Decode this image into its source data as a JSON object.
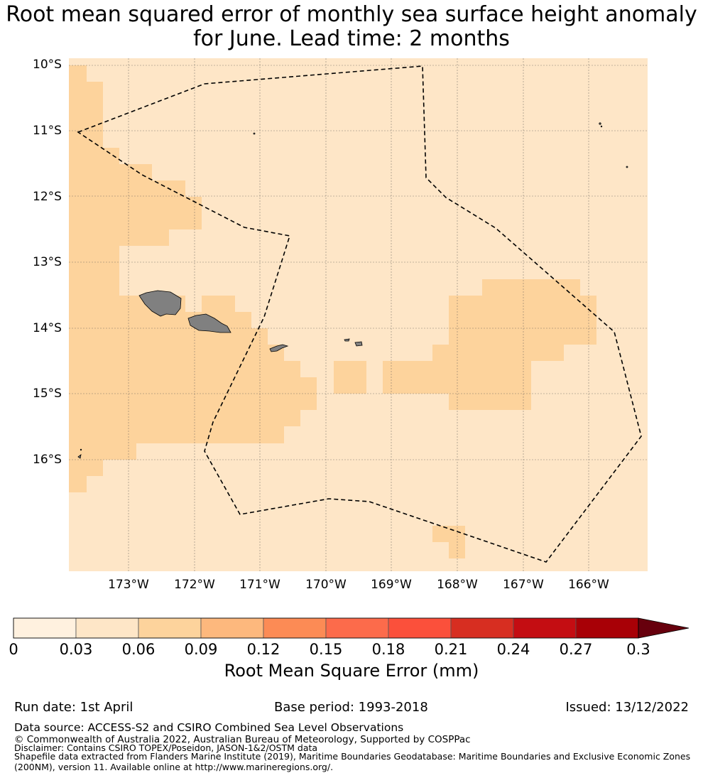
{
  "title": {
    "line1": "Root mean squared error of monthly sea surface height anomaly",
    "line2": "for June. Lead time: 2 months"
  },
  "map": {
    "lat_labels": [
      "10°S",
      "11°S",
      "12°S",
      "13°S",
      "14°S",
      "15°S",
      "16°S"
    ],
    "lon_labels": [
      "173°W",
      "172°W",
      "171°W",
      "170°W",
      "169°W",
      "168°W",
      "167°W",
      "166°W"
    ],
    "extent": {
      "lon_min": -173.9,
      "lon_max": -165.1,
      "lat_min": -17.6,
      "lat_max": -9.9
    },
    "colors": {
      "background": "#fee6c7",
      "cell_high": "#fdd39c",
      "land": "#808080",
      "boundary": "#000000"
    }
  },
  "colorbar": {
    "ticks": [
      "0",
      "0.03",
      "0.06",
      "0.09",
      "0.12",
      "0.15",
      "0.18",
      "0.21",
      "0.24",
      "0.27",
      "0.3"
    ],
    "colors": [
      "#fff1df",
      "#fee6c7",
      "#fdd39c",
      "#fdb87d",
      "#fc8b55",
      "#fc6b4b",
      "#fb503b",
      "#d72e21",
      "#c40d12",
      "#a80006"
    ],
    "extend_color": "#67000d",
    "label": "Root Mean Square Error (mm)"
  },
  "footer": {
    "run_date": "Run date: 1st April",
    "base_period": "Base period: 1993-2018",
    "issued": "Issued: 13/12/2022",
    "data_source": "Data source: ACCESS-S2 and CSIRO Combined Sea Level Observations",
    "copyright": "© Commonwealth of Australia 2022, Australian Bureau of Meteorology, Supported by COSPPac",
    "disclaimer": "Disclaimer: Contains CSIRO TOPEX/Poseidon, JASON-1&2/OSTM data",
    "shapefile_line1": "Shapefile data extracted from Flanders Marine Institute (2019), Maritime Boundaries Geodatabase: Maritime Boundaries and Exclusive Economic Zones",
    "shapefile_line2": "(200NM), version 11. Available online at http://www.marineregions.org/."
  }
}
